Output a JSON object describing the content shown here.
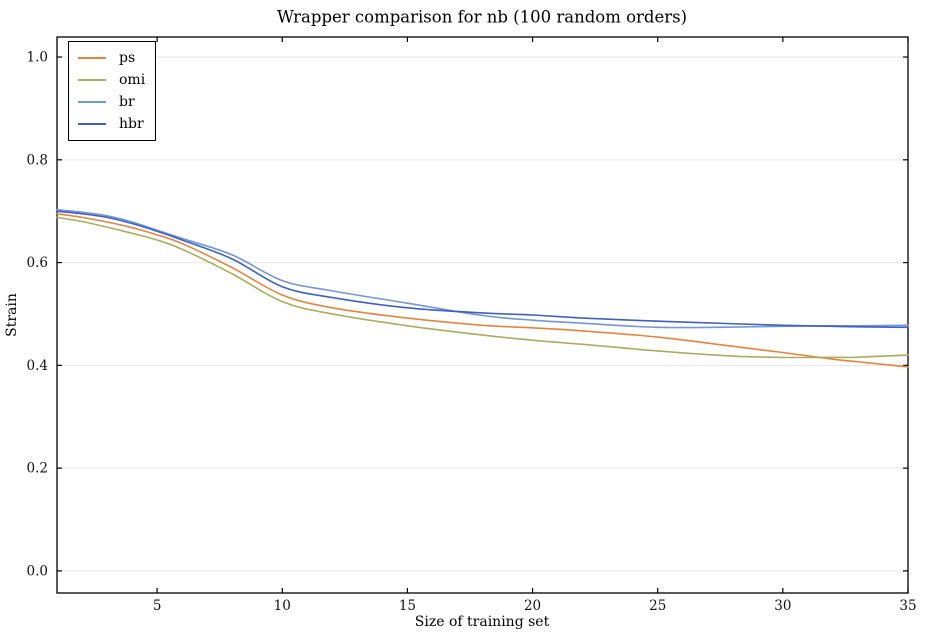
{
  "chart_data": {
    "type": "line",
    "title": "Wrapper comparison for nb (100 random orders)",
    "xlabel": "Size of training set",
    "ylabel": "Strain",
    "xlim": [
      1,
      35
    ],
    "ylim": [
      -0.043,
      1.039
    ],
    "xticks": [
      5,
      10,
      15,
      20,
      25,
      30,
      35
    ],
    "xtick_labels": [
      "5",
      "10",
      "15",
      "20",
      "25",
      "30",
      "35"
    ],
    "yticks": [
      0.0,
      0.2,
      0.4,
      0.6,
      0.8,
      1.0
    ],
    "ytick_labels": [
      "0.0",
      "0.2",
      "0.4",
      "0.6",
      "0.8",
      "1.0"
    ],
    "grid": "horizontal-only",
    "grid_color": "#e6e6e6",
    "spine_color": "#000000",
    "legend_position": "upper-left",
    "x": [
      1,
      2,
      3,
      4,
      5,
      6,
      8,
      10,
      12,
      15,
      18,
      20,
      22,
      25,
      28,
      30,
      32,
      33,
      35
    ],
    "series": [
      {
        "name": "ps",
        "color": "#e8833c",
        "values": [
          0.695,
          0.688,
          0.679,
          0.668,
          0.654,
          0.637,
          0.59,
          0.537,
          0.512,
          0.492,
          0.478,
          0.473,
          0.467,
          0.455,
          0.437,
          0.425,
          0.412,
          0.407,
          0.397
        ]
      },
      {
        "name": "omi",
        "color": "#a9ae5e",
        "values": [
          0.688,
          0.68,
          0.669,
          0.657,
          0.644,
          0.626,
          0.578,
          0.524,
          0.5,
          0.477,
          0.459,
          0.449,
          0.441,
          0.428,
          0.418,
          0.4155,
          0.4155,
          0.416,
          0.42
        ]
      },
      {
        "name": "br",
        "color": "#7397d4",
        "values": [
          0.703,
          0.698,
          0.691,
          0.679,
          0.663,
          0.647,
          0.615,
          0.565,
          0.545,
          0.521,
          0.497,
          0.488,
          0.482,
          0.474,
          0.4745,
          0.476,
          0.477,
          0.477,
          0.478
        ]
      },
      {
        "name": "hbr",
        "color": "#3f60c4",
        "values": [
          0.7,
          0.695,
          0.688,
          0.676,
          0.661,
          0.644,
          0.607,
          0.553,
          0.532,
          0.512,
          0.502,
          0.498,
          0.492,
          0.486,
          0.481,
          0.478,
          0.476,
          0.475,
          0.474
        ]
      }
    ]
  }
}
